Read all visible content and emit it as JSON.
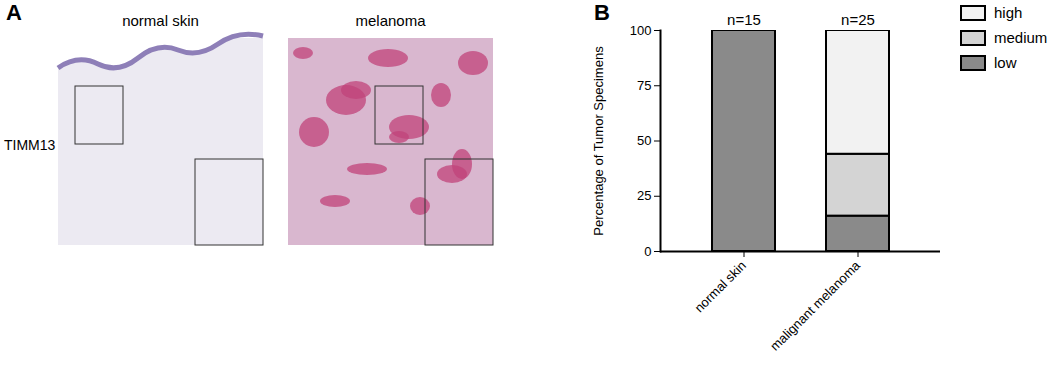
{
  "panel_a": {
    "label": "A",
    "row_label": "TIMM13",
    "images": [
      {
        "title": "normal skin"
      },
      {
        "title": "melanoma"
      }
    ]
  },
  "panel_b": {
    "label": "B"
  },
  "chart_data": {
    "type": "bar",
    "stacked": true,
    "categories": [
      "normal skin",
      "malignant melanoma"
    ],
    "bar_labels": [
      "n=15",
      "n=25"
    ],
    "series": [
      {
        "name": "low",
        "color": "#8a8a8a",
        "values": [
          100,
          16
        ]
      },
      {
        "name": "medium",
        "color": "#d4d4d4",
        "values": [
          0,
          28
        ]
      },
      {
        "name": "high",
        "color": "#f2f2f2",
        "values": [
          0,
          56
        ]
      }
    ],
    "y_label": "Percentage of Tumor Specimens",
    "ylim": [
      0,
      100
    ],
    "yticks": [
      0,
      25,
      50,
      75,
      100
    ],
    "legend": "top-right"
  }
}
